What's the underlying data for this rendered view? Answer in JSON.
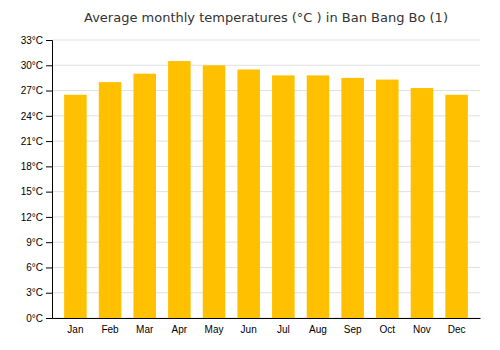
{
  "chart_data": {
    "type": "bar",
    "title": "Average monthly temperatures (°C ) in Ban Bang Bo (1)",
    "categories": [
      "Jan",
      "Feb",
      "Mar",
      "Apr",
      "May",
      "Jun",
      "Jul",
      "Aug",
      "Sep",
      "Oct",
      "Nov",
      "Dec"
    ],
    "values": [
      26.5,
      28.0,
      29.0,
      30.5,
      30.0,
      29.5,
      28.8,
      28.8,
      28.5,
      28.3,
      27.3,
      26.5
    ],
    "color": "#FFC000",
    "ylim": [
      0,
      33
    ],
    "yticks": [
      {
        "value": 0,
        "label": "0°C"
      },
      {
        "value": 3,
        "label": "3°C"
      },
      {
        "value": 6,
        "label": "6°C"
      },
      {
        "value": 9,
        "label": "9°C"
      },
      {
        "value": 12,
        "label": "12°C"
      },
      {
        "value": 15,
        "label": "15°C"
      },
      {
        "value": 18,
        "label": "18°C"
      },
      {
        "value": 21,
        "label": "21°C"
      },
      {
        "value": 24,
        "label": "24°C"
      },
      {
        "value": 27,
        "label": "27°C"
      },
      {
        "value": 30,
        "label": "30°C"
      },
      {
        "value": 33,
        "label": "33°C"
      }
    ],
    "grid": true
  }
}
